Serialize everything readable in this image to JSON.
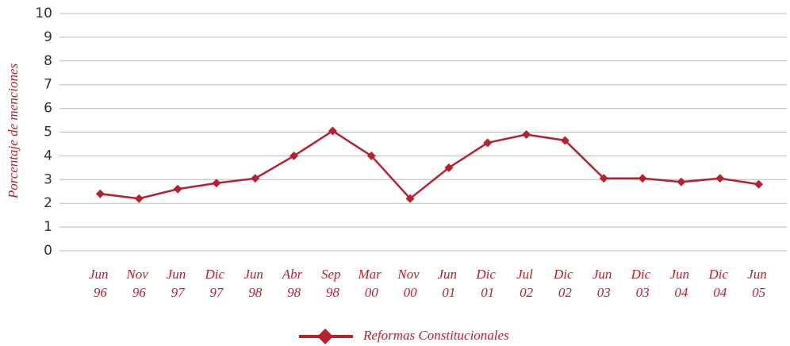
{
  "chart_data": {
    "type": "line",
    "y_label": "Porcentaje de menciones",
    "categories": [
      "Jun 96",
      "Nov 96",
      "Jun 97",
      "Dic 97",
      "Jun 98",
      "Abr 98",
      "Sep 98",
      "Mar 00",
      "Nov 00",
      "Jun 01",
      "Dic 01",
      "Jul 02",
      "Dic 02",
      "Jun 03",
      "Dic 03",
      "Jun 04",
      "Dic 04",
      "Jun 05"
    ],
    "series": [
      {
        "name": "Reformas Constitucionales",
        "color": "#b5212e",
        "values": [
          2.4,
          2.2,
          2.6,
          2.85,
          3.05,
          4.0,
          5.05,
          4.0,
          2.2,
          3.5,
          4.55,
          4.9,
          4.65,
          3.05,
          3.05,
          2.9,
          3.05,
          2.8
        ]
      }
    ],
    "ylim": [
      0,
      10
    ],
    "yticks": [
      0,
      1,
      2,
      3,
      4,
      5,
      6,
      7,
      8,
      9,
      10
    ],
    "grid": true
  }
}
